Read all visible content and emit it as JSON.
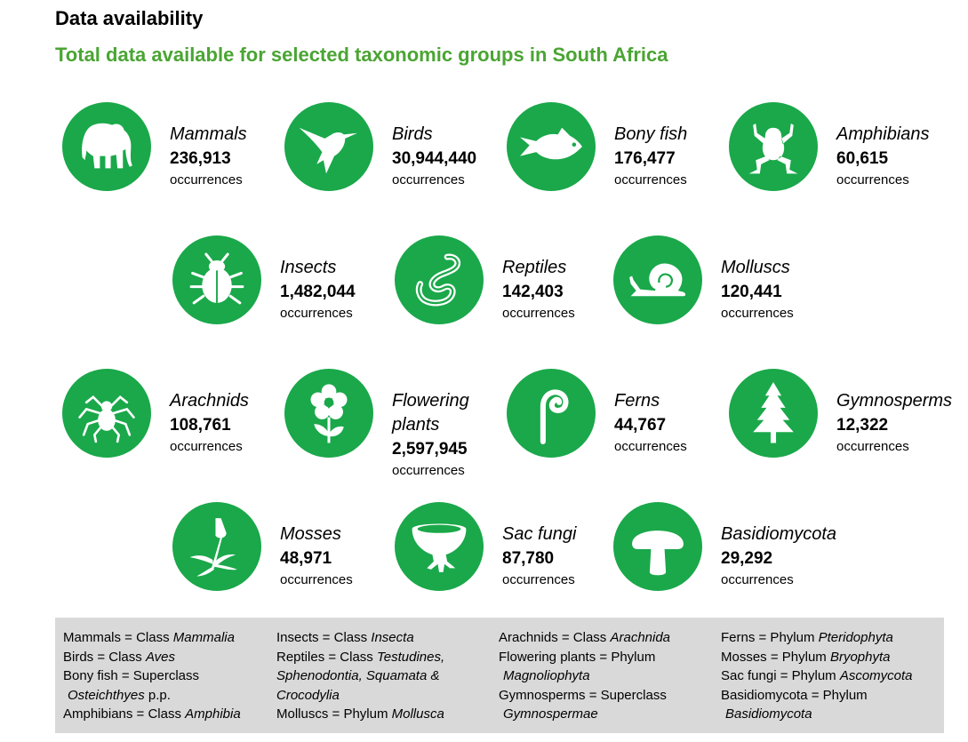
{
  "title": "Data availability",
  "subtitle": "Total data available for selected taxonomic groups in South Africa",
  "unit_label": "occurrences",
  "accent_color": "#1aa84a",
  "subtitle_color": "#4aa533",
  "groups": [
    {
      "name": "Mammals",
      "count": "236,913",
      "icon": "elephant-icon"
    },
    {
      "name": "Birds",
      "count": "30,944,440",
      "icon": "hummingbird-icon"
    },
    {
      "name": "Bony fish",
      "count": "176,477",
      "icon": "fish-icon"
    },
    {
      "name": "Amphibians",
      "count": "60,615",
      "icon": "frog-icon"
    },
    {
      "name": "Insects",
      "count": "1,482,044",
      "icon": "beetle-icon"
    },
    {
      "name": "Reptiles",
      "count": "142,403",
      "icon": "snake-icon"
    },
    {
      "name": "Molluscs",
      "count": "120,441",
      "icon": "snail-icon"
    },
    {
      "name": "Arachnids",
      "count": "108,761",
      "icon": "spider-icon"
    },
    {
      "name": "Flowering plants",
      "name_line1": "Flowering",
      "name_line2": "plants",
      "count": "2,597,945",
      "icon": "flower-icon"
    },
    {
      "name": "Ferns",
      "count": "44,767",
      "icon": "fern-icon"
    },
    {
      "name": "Gymnosperms",
      "count": "12,322",
      "icon": "conifer-icon"
    },
    {
      "name": "Mosses",
      "count": "48,971",
      "icon": "moss-icon"
    },
    {
      "name": "Sac fungi",
      "count": "87,780",
      "icon": "cup-fungus-icon"
    },
    {
      "name": "Basidiomycota",
      "count": "29,292",
      "icon": "mushroom-icon"
    }
  ],
  "legend": {
    "col1": [
      {
        "a": "Mammals = Class ",
        "b": "Mammalia"
      },
      {
        "a": "Birds = Class ",
        "b": "Aves"
      },
      {
        "a": "Bony fish = Superclass",
        "b": ""
      },
      {
        "a": "",
        "b": "Osteichthyes",
        "c": " p.p."
      },
      {
        "a": "Amphibians = Class ",
        "b": "Amphibia"
      }
    ],
    "col2": [
      {
        "a": "Insects = Class ",
        "b": "Insecta"
      },
      {
        "a": "Reptiles = Class ",
        "b": "Testudines,"
      },
      {
        "a": "",
        "b": "Sphenodontia, Squamata &"
      },
      {
        "a": "",
        "b": "Crocodylia"
      },
      {
        "a": "Molluscs = Phylum ",
        "b": "Mollusca"
      }
    ],
    "col3": [
      {
        "a": "Arachnids = Class ",
        "b": "Arachnida"
      },
      {
        "a": "Flowering plants = Phylum",
        "b": ""
      },
      {
        "a": "",
        "b": "Magnoliophyta"
      },
      {
        "a": "Gymnosperms = Superclass",
        "b": ""
      },
      {
        "a": "",
        "b": "Gymnospermae"
      }
    ],
    "col4": [
      {
        "a": "Ferns = Phylum ",
        "b": "Pteridophyta"
      },
      {
        "a": "Mosses = Phylum ",
        "b": "Bryophyta"
      },
      {
        "a": "Sac fungi = Phylum ",
        "b": "Ascomycota"
      },
      {
        "a": "Basidiomycota = Phylum",
        "b": ""
      },
      {
        "a": "",
        "b": "Basidiomycota"
      }
    ]
  }
}
